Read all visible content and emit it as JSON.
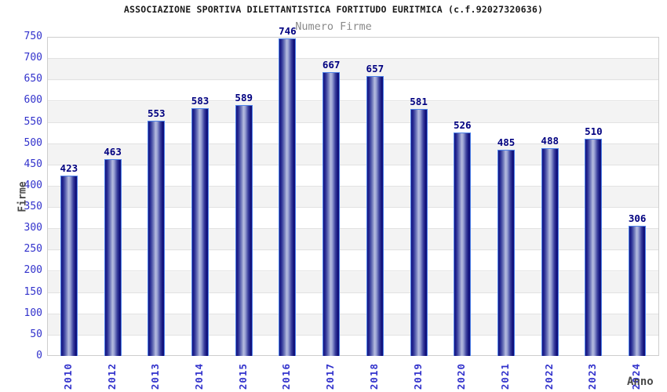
{
  "header": {
    "title": "ASSOCIAZIONE SPORTIVA DILETTANTISTICA FORTITUDO EURITMICA (c.f.92027320636)",
    "subtitle": "Numero Firme"
  },
  "chart_data": {
    "type": "bar",
    "title": "ASSOCIAZIONE SPORTIVA DILETTANTISTICA FORTITUDO EURITMICA (c.f.92027320636)",
    "subtitle": "Numero Firme",
    "categories": [
      "2010",
      "2012",
      "2013",
      "2014",
      "2015",
      "2016",
      "2017",
      "2018",
      "2019",
      "2020",
      "2021",
      "2022",
      "2023",
      "2024"
    ],
    "values": [
      423,
      463,
      553,
      583,
      589,
      746,
      667,
      657,
      581,
      526,
      485,
      488,
      510,
      306
    ],
    "xlabel": "Anno",
    "ylabel": "Firme",
    "ylim": [
      0,
      750
    ],
    "yticks": [
      0,
      50,
      100,
      150,
      200,
      250,
      300,
      350,
      400,
      450,
      500,
      550,
      600,
      650,
      700,
      750
    ],
    "grid": true,
    "legend_position": "none",
    "colors": {
      "bar_body_dark": "#131380",
      "bar_body_light": "#b6bcdf",
      "bar_border": "#4e82e8",
      "value_label": "#000080",
      "tick_label": "#3232cc",
      "axis_title": "#4a4a4a",
      "subtitle": "#8a8a8a",
      "band_gray": "#f3f3f3",
      "plot_border": "#cdcdcd"
    }
  }
}
